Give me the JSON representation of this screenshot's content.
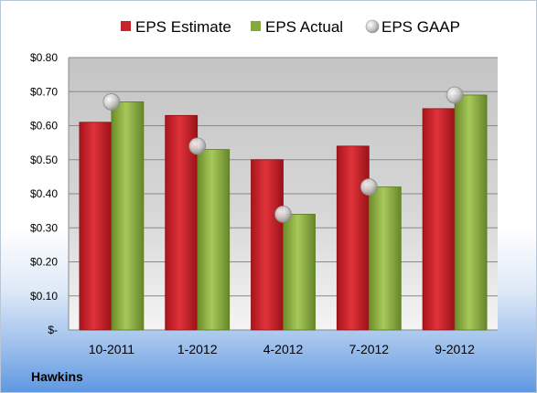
{
  "chart_data": {
    "type": "bar",
    "title": "",
    "xlabel": "",
    "ylabel": "",
    "categories": [
      "10-2011",
      "1-2012",
      "4-2012",
      "7-2012",
      "9-2012"
    ],
    "series": [
      {
        "name": "EPS Estimate",
        "type": "bar",
        "color": "#c8222a",
        "values": [
          0.61,
          0.63,
          0.5,
          0.54,
          0.65
        ]
      },
      {
        "name": "EPS Actual",
        "type": "bar",
        "color": "#86a83a",
        "values": [
          0.67,
          0.53,
          0.34,
          0.42,
          0.69
        ]
      },
      {
        "name": "EPS GAAP",
        "type": "scatter",
        "color": "#b8b8b8",
        "values": [
          0.67,
          0.54,
          0.34,
          0.42,
          0.69
        ]
      }
    ],
    "ylim": [
      0,
      0.8
    ],
    "ytick_labels": [
      "$-",
      "$0.10",
      "$0.20",
      "$0.30",
      "$0.40",
      "$0.50",
      "$0.60",
      "$0.70",
      "$0.80"
    ],
    "grid": true,
    "legend_position": "top"
  },
  "footer": {
    "company": "Hawkins"
  }
}
